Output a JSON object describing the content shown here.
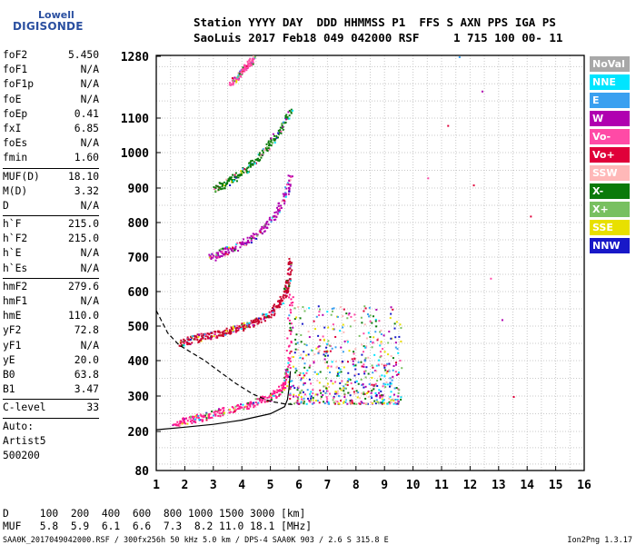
{
  "logo": {
    "line1": "Lowell",
    "line2": "DIGISONDE"
  },
  "header": {
    "line1": "Station YYYY DAY  DDD HHMMSS P1  FFS S AXN PPS IGA PS",
    "line2": "SaoLuis 2017 Feb18 049 042000 RSF     1 715 100 00- 11"
  },
  "params": {
    "group1": [
      {
        "name": "foF2",
        "value": "5.450"
      },
      {
        "name": "foF1",
        "value": "N/A"
      },
      {
        "name": "foF1p",
        "value": "N/A"
      },
      {
        "name": "foE",
        "value": "N/A"
      },
      {
        "name": "foEp",
        "value": "0.41"
      },
      {
        "name": "fxI",
        "value": "6.85"
      },
      {
        "name": "foEs",
        "value": "N/A"
      },
      {
        "name": "fmin",
        "value": "1.60"
      }
    ],
    "group2": [
      {
        "name": "MUF(D)",
        "value": "18.10"
      },
      {
        "name": "M(D)",
        "value": "3.32"
      },
      {
        "name": "D",
        "value": "N/A"
      }
    ],
    "group3": [
      {
        "name": "h`F",
        "value": "215.0"
      },
      {
        "name": "h`F2",
        "value": "215.0"
      },
      {
        "name": "h`E",
        "value": "N/A"
      },
      {
        "name": "h`Es",
        "value": "N/A"
      }
    ],
    "group4": [
      {
        "name": "hmF2",
        "value": "279.6"
      },
      {
        "name": "hmF1",
        "value": "N/A"
      },
      {
        "name": "hmE",
        "value": "110.0"
      },
      {
        "name": "yF2",
        "value": "72.8"
      },
      {
        "name": "yF1",
        "value": "N/A"
      },
      {
        "name": "yE",
        "value": "20.0"
      },
      {
        "name": "B0",
        "value": "63.8"
      },
      {
        "name": "B1",
        "value": "3.47"
      }
    ],
    "group5": [
      {
        "name": "C-level",
        "value": "33"
      }
    ],
    "auto": [
      "Auto:",
      "Artist5",
      "500200"
    ]
  },
  "legend": [
    {
      "label": "NoVal",
      "color": "#a8a8a8",
      "text": "#ffffff"
    },
    {
      "label": "NNE",
      "color": "#00e5ff",
      "text": "#ffffff"
    },
    {
      "label": "E",
      "color": "#3aa0f0",
      "text": "#ffffff"
    },
    {
      "label": "W",
      "color": "#b000b0",
      "text": "#ffffff"
    },
    {
      "label": "Vo-",
      "color": "#ff4aa6",
      "text": "#ffffff"
    },
    {
      "label": "Vo+",
      "color": "#e0003a",
      "text": "#ffffff"
    },
    {
      "label": "SSW",
      "color": "#ffb8b8",
      "text": "#ffffff"
    },
    {
      "label": "X-",
      "color": "#0a7a0a",
      "text": "#ffffff"
    },
    {
      "label": "X+",
      "color": "#78c060",
      "text": "#ffffff"
    },
    {
      "label": "SSE",
      "color": "#e8e000",
      "text": "#ffffff"
    },
    {
      "label": "NNW",
      "color": "#1818c8",
      "text": "#ffffff"
    }
  ],
  "muf_table": {
    "line1": "D     100  200  400  600  800 1000 1500 3000 [km]",
    "line2": "MUF   5.8  5.9  6.1  6.6  7.3  8.2 11.0 18.1 [MHz]"
  },
  "footer": {
    "left": "SAA0K_2017049042000.RSF / 300fx256h 50 kHz 5.0 km / DPS-4 SAA0K 903 / 2.6 S 315.8 E",
    "right": "Ion2Png 1.3.17"
  },
  "chart_data": {
    "type": "scatter",
    "xlabel": "",
    "ylabel": "",
    "x_ticks": [
      1,
      2,
      3,
      4,
      5,
      6,
      7,
      8,
      9,
      10,
      11,
      12,
      13,
      14,
      15,
      16
    ],
    "y_ticks": [
      80,
      200,
      300,
      400,
      500,
      600,
      700,
      800,
      900,
      1000,
      1100,
      1280
    ],
    "xlim": [
      1,
      16
    ],
    "ylim": [
      80,
      1280
    ],
    "y_scale": "custom non-linear (ionogram virtual height)",
    "series": [
      {
        "type": "trace",
        "color": "#ff1a8c",
        "x": [
          1.6,
          2.0,
          2.5,
          3.0,
          3.5,
          4.0,
          4.5,
          5.0,
          5.3,
          5.5,
          5.6,
          5.7
        ],
        "y": [
          225,
          232,
          240,
          252,
          262,
          272,
          285,
          300,
          315,
          340,
          390,
          600
        ]
      },
      {
        "type": "trace",
        "color": "#c8002a",
        "x": [
          1.8,
          2.2,
          2.6,
          3.0,
          3.4,
          3.8,
          4.2,
          4.6,
          5.0,
          5.3,
          5.5,
          5.6,
          5.7
        ],
        "y": [
          450,
          462,
          470,
          478,
          486,
          495,
          505,
          520,
          540,
          565,
          600,
          640,
          700
        ]
      },
      {
        "type": "trace",
        "color": "#b000b0",
        "x": [
          2.9,
          3.2,
          3.6,
          4.0,
          4.4,
          4.8,
          5.2,
          5.5,
          5.7
        ],
        "y": [
          700,
          712,
          725,
          740,
          760,
          790,
          830,
          880,
          940
        ]
      },
      {
        "type": "trace",
        "color": "#0a7a0a",
        "x": [
          3.0,
          3.4,
          3.8,
          4.2,
          4.6,
          5.0,
          5.4,
          5.7
        ],
        "y": [
          900,
          915,
          935,
          960,
          990,
          1030,
          1080,
          1130
        ]
      },
      {
        "type": "trace",
        "color": "#ff4aa6",
        "x": [
          3.6,
          3.8,
          4.0,
          4.2,
          4.4
        ],
        "y": [
          1200,
          1220,
          1240,
          1260,
          1275
        ]
      },
      {
        "type": "cluster",
        "label": "spread F echoes",
        "x_range": [
          5.6,
          9.6
        ],
        "y_range": [
          280,
          560
        ]
      },
      {
        "type": "scatter",
        "label": "sparse echoes",
        "x": [
          10.5,
          11.2,
          11.6,
          12.1,
          12.4,
          12.7,
          13.1,
          13.5,
          14.1
        ],
        "y": [
          930,
          1080,
          1280,
          910,
          1180,
          640,
          520,
          300,
          820
        ]
      }
    ],
    "model_curves": [
      {
        "style": "dashed",
        "x": [
          1.0,
          1.4,
          1.8,
          2.2,
          2.7,
          3.2,
          3.8,
          4.4,
          5.0,
          5.5,
          5.8
        ],
        "y": [
          545,
          480,
          445,
          425,
          400,
          370,
          335,
          305,
          285,
          278,
          276
        ]
      },
      {
        "style": "solid",
        "x": [
          1.0,
          2.0,
          3.0,
          4.0,
          5.0,
          5.5,
          5.6,
          5.65,
          5.7
        ],
        "y": [
          205,
          212,
          220,
          232,
          250,
          270,
          290,
          320,
          370
        ]
      }
    ],
    "grid": true
  }
}
